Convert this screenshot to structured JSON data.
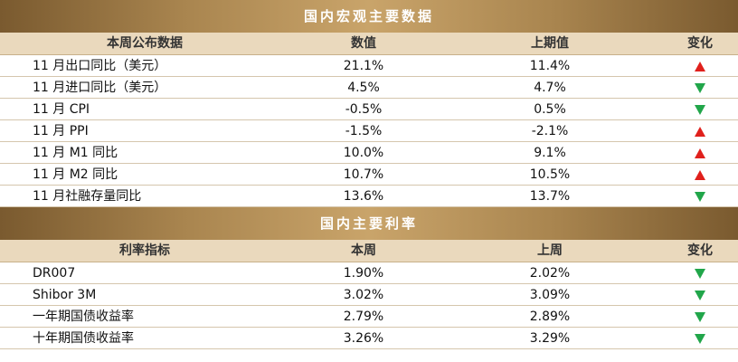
{
  "macro": {
    "title": "国内宏观主要数据",
    "headers": [
      "本周公布数据",
      "数值",
      "上期值",
      "变化"
    ],
    "rows": [
      {
        "name": "11 月出口同比（美元）",
        "value": "21.1%",
        "prev": "11.4%",
        "change": "up"
      },
      {
        "name": "11 月进口同比（美元）",
        "value": "4.5%",
        "prev": "4.7%",
        "change": "down"
      },
      {
        "name": "11 月 CPI",
        "value": "-0.5%",
        "prev": "0.5%",
        "change": "down"
      },
      {
        "name": "11 月 PPI",
        "value": "-1.5%",
        "prev": "-2.1%",
        "change": "up"
      },
      {
        "name": "11 月 M1 同比",
        "value": "10.0%",
        "prev": "9.1%",
        "change": "up"
      },
      {
        "name": "11 月 M2 同比",
        "value": "10.7%",
        "prev": "10.5%",
        "change": "up"
      },
      {
        "name": "11 月社融存量同比",
        "value": "13.6%",
        "prev": "13.7%",
        "change": "down"
      }
    ]
  },
  "rates": {
    "title": "国内主要利率",
    "headers": [
      "利率指标",
      "本周",
      "上周",
      "变化"
    ],
    "rows": [
      {
        "name": "DR007",
        "value": "1.90%",
        "prev": "2.02%",
        "change": "down"
      },
      {
        "name": "Shibor 3M",
        "value": "3.02%",
        "prev": "3.09%",
        "change": "down"
      },
      {
        "name": "一年期国债收益率",
        "value": "2.79%",
        "prev": "2.89%",
        "change": "down"
      },
      {
        "name": "十年期国债收益率",
        "value": "3.26%",
        "prev": "3.29%",
        "change": "down"
      }
    ]
  },
  "colors": {
    "up": "#e0201c",
    "down": "#21a64a",
    "title_bg": "#a9854f",
    "header_bg": "#ead9bd"
  }
}
